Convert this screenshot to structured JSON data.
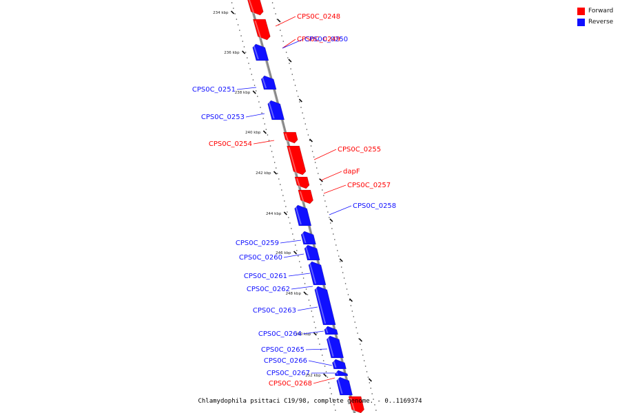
{
  "caption": "Chlamydophila psittaci C19/98, complete genome. - 0..1169374",
  "legend": [
    {
      "label": "Forward",
      "color": "#ff0000"
    },
    {
      "label": "Reverse",
      "color": "#1010ff"
    }
  ],
  "ticks": [
    "234 kbp",
    "236 kbp",
    "238 kbp",
    "240 kbp",
    "242 kbp",
    "244 kbp",
    "246 kbp",
    "248 kbp",
    "250 kbp",
    "252 kbp"
  ],
  "genes": [
    {
      "label": "CPS0C_0248",
      "strand": "forward"
    },
    {
      "label": "CPS0C_0249",
      "strand": "forward"
    },
    {
      "label": "CPS0C_0250",
      "strand": "reverse"
    },
    {
      "label": "CPS0C_0251",
      "strand": "reverse"
    },
    {
      "label": "CPS0C_0253",
      "strand": "reverse"
    },
    {
      "label": "CPS0C_0254",
      "strand": "forward"
    },
    {
      "label": "CPS0C_0255",
      "strand": "forward"
    },
    {
      "label": "dapF",
      "strand": "forward"
    },
    {
      "label": "CPS0C_0257",
      "strand": "forward"
    },
    {
      "label": "CPS0C_0258",
      "strand": "reverse"
    },
    {
      "label": "CPS0C_0259",
      "strand": "reverse"
    },
    {
      "label": "CPS0C_0260",
      "strand": "reverse"
    },
    {
      "label": "CPS0C_0261",
      "strand": "reverse"
    },
    {
      "label": "CPS0C_0262",
      "strand": "reverse"
    },
    {
      "label": "CPS0C_0263",
      "strand": "reverse"
    },
    {
      "label": "CPS0C_0264",
      "strand": "reverse"
    },
    {
      "label": "CPS0C_0265",
      "strand": "reverse"
    },
    {
      "label": "CPS0C_0266",
      "strand": "reverse"
    },
    {
      "label": "CPS0C_0267",
      "strand": "reverse"
    },
    {
      "label": "CPS0C_0268",
      "strand": "forward"
    }
  ]
}
